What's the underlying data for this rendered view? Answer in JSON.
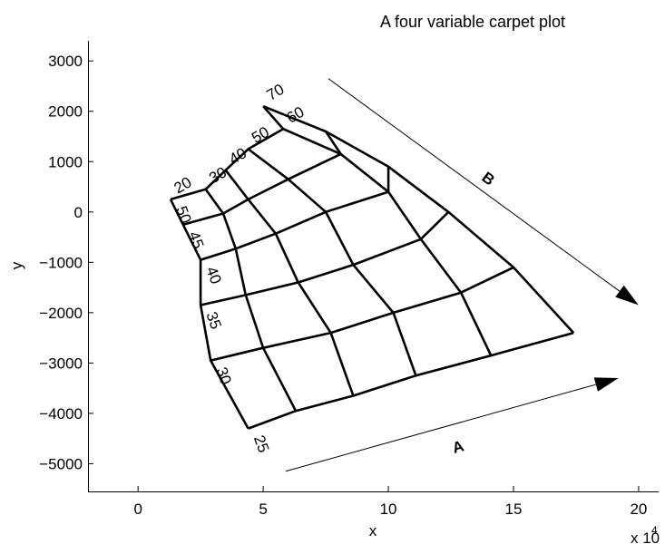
{
  "chart_data": {
    "type": "carpet",
    "title": "A four variable carpet plot",
    "xlabel": "x",
    "ylabel": "y",
    "x_multiplier": "x 10",
    "x_exponent": "4",
    "xlim": [
      -2,
      20.8
    ],
    "ylim": [
      -5550,
      3400
    ],
    "x_ticks": [
      0,
      5,
      10,
      15,
      20
    ],
    "x_tick_labels": [
      "0",
      "5",
      "10",
      "15",
      "20"
    ],
    "y_ticks": [
      3000,
      2000,
      1000,
      0,
      -1000,
      -2000,
      -3000,
      -4000,
      -5000
    ],
    "y_tick_labels": [
      "3000",
      "2000",
      "1000",
      "0",
      "−1000",
      "−2000",
      "−3000",
      "−4000",
      "−5000"
    ],
    "grid": false,
    "A_values": [
      25,
      30,
      35,
      40,
      45,
      50
    ],
    "A_labels": [
      "25",
      "30",
      "35",
      "40",
      "45",
      "50"
    ],
    "B_values": [
      20,
      30,
      40,
      50,
      60,
      70
    ],
    "B_labels": [
      "20",
      "30",
      "40",
      "50",
      "60",
      "70"
    ],
    "axis_A_label": "A",
    "axis_B_label": "B",
    "grid_points": [
      [
        [
          4.4,
          -4300
        ],
        [
          2.9,
          -2950
        ],
        [
          2.5,
          -1850
        ],
        [
          2.5,
          -950
        ],
        [
          1.8,
          -250
        ],
        [
          1.3,
          250
        ]
      ],
      [
        [
          6.3,
          -3950
        ],
        [
          5.0,
          -2700
        ],
        [
          4.3,
          -1650
        ],
        [
          3.9,
          -730
        ],
        [
          3.4,
          -30
        ],
        [
          2.7,
          450
        ]
      ],
      [
        [
          8.6,
          -3650
        ],
        [
          7.7,
          -2400
        ],
        [
          6.4,
          -1400
        ],
        [
          5.5,
          -430
        ],
        [
          4.4,
          250
        ],
        [
          3.5,
          830
        ]
      ],
      [
        [
          11.1,
          -3250
        ],
        [
          10.2,
          -2000
        ],
        [
          8.6,
          -1050
        ],
        [
          7.5,
          0
        ],
        [
          6.0,
          650
        ],
        [
          4.4,
          1250
        ]
      ],
      [
        [
          14.1,
          -2850
        ],
        [
          12.9,
          -1600
        ],
        [
          11.3,
          -540
        ],
        [
          10.0,
          400
        ],
        [
          8.1,
          1150
        ],
        [
          5.8,
          1650
        ]
      ],
      [
        [
          17.4,
          -2400
        ],
        [
          15.0,
          -1100
        ],
        [
          12.4,
          0
        ],
        [
          10.0,
          900
        ],
        [
          7.5,
          1600
        ],
        [
          5.0,
          2100
        ]
      ]
    ],
    "arrow_A": {
      "from": [
        5.9,
        -5150
      ],
      "to": [
        19.2,
        -3300
      ]
    },
    "arrow_B": {
      "from": [
        7.6,
        2650
      ],
      "to": [
        20.0,
        -1850
      ]
    }
  }
}
